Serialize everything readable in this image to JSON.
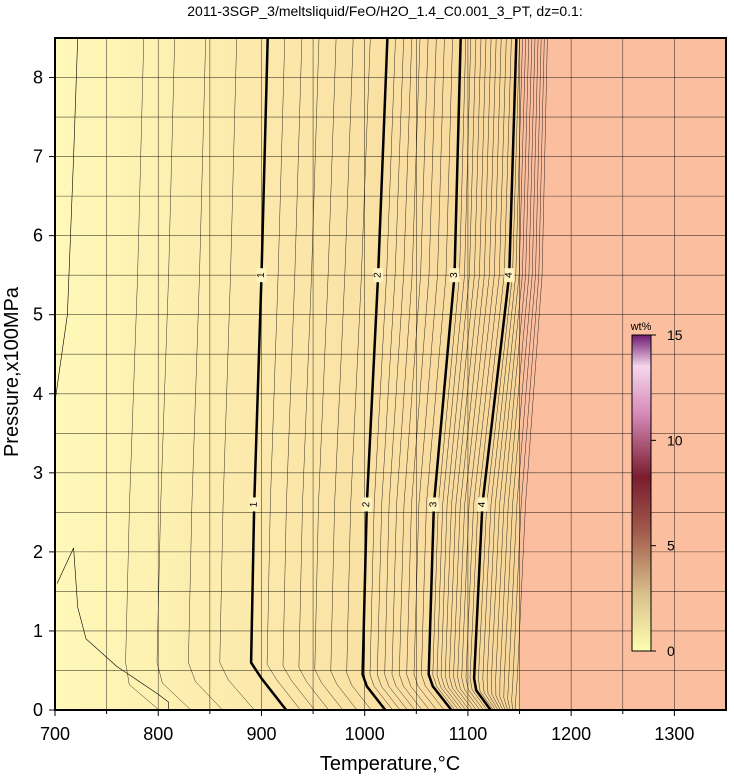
{
  "chart_data": {
    "type": "heatmap",
    "title": "2011-3SGP_3/meltsliquid/FeO/H2O_1.4_C0.001_3_PT, dz=0.1:",
    "xlabel": "Temperature,°C",
    "ylabel": "Pressure,x100MPa",
    "xlim": [
      700,
      1350
    ],
    "ylim": [
      0,
      8.5
    ],
    "x_ticks": [
      "700",
      "800",
      "900",
      "1000",
      "1100",
      "1200",
      "1300"
    ],
    "y_ticks": [
      "0",
      "1",
      "2",
      "3",
      "4",
      "5",
      "6",
      "7",
      "8"
    ],
    "grid": true,
    "colorbar": {
      "unit": "wt%",
      "range": [
        0,
        15
      ],
      "ticks": [
        "0",
        "5",
        "10",
        "15"
      ],
      "position": "right"
    },
    "field_colors": {
      "melt_low": "#fff8b8",
      "melt_high": "#f8d69a",
      "no_melt": "#fbbf9f"
    },
    "liquidus_region": {
      "x_from": 1150,
      "color": "#fbbf9f"
    },
    "major_contours": [
      {
        "label": "1",
        "points": [
          [
            924,
            0
          ],
          [
            900,
            0.4
          ],
          [
            890,
            0.6
          ],
          [
            893,
            2.6
          ],
          [
            900,
            5.5
          ],
          [
            906,
            8.5
          ]
        ],
        "label_y": [
          2.6,
          5.5
        ]
      },
      {
        "label": "2",
        "points": [
          [
            1020,
            0
          ],
          [
            1002,
            0.3
          ],
          [
            998,
            0.45
          ],
          [
            1002,
            2.6
          ],
          [
            1013,
            5.5
          ],
          [
            1022,
            8.5
          ]
        ],
        "label_y": [
          2.6,
          5.5
        ]
      },
      {
        "label": "3",
        "points": [
          [
            1084,
            0
          ],
          [
            1066,
            0.3
          ],
          [
            1062,
            0.45
          ],
          [
            1067,
            2.6
          ],
          [
            1087,
            5.5
          ],
          [
            1093,
            8.5
          ]
        ],
        "label_y": [
          2.6,
          5.5
        ]
      },
      {
        "label": "4",
        "points": [
          [
            1122,
            0
          ],
          [
            1108,
            0.25
          ],
          [
            1106,
            0.4
          ],
          [
            1114,
            2.6
          ],
          [
            1140,
            5.5
          ],
          [
            1147,
            8.5
          ]
        ],
        "label_y": [
          2.6,
          5.5
        ]
      }
    ],
    "contour_labels": [
      "1",
      "1",
      "2",
      "2",
      "3",
      "3",
      "4",
      "4"
    ]
  }
}
